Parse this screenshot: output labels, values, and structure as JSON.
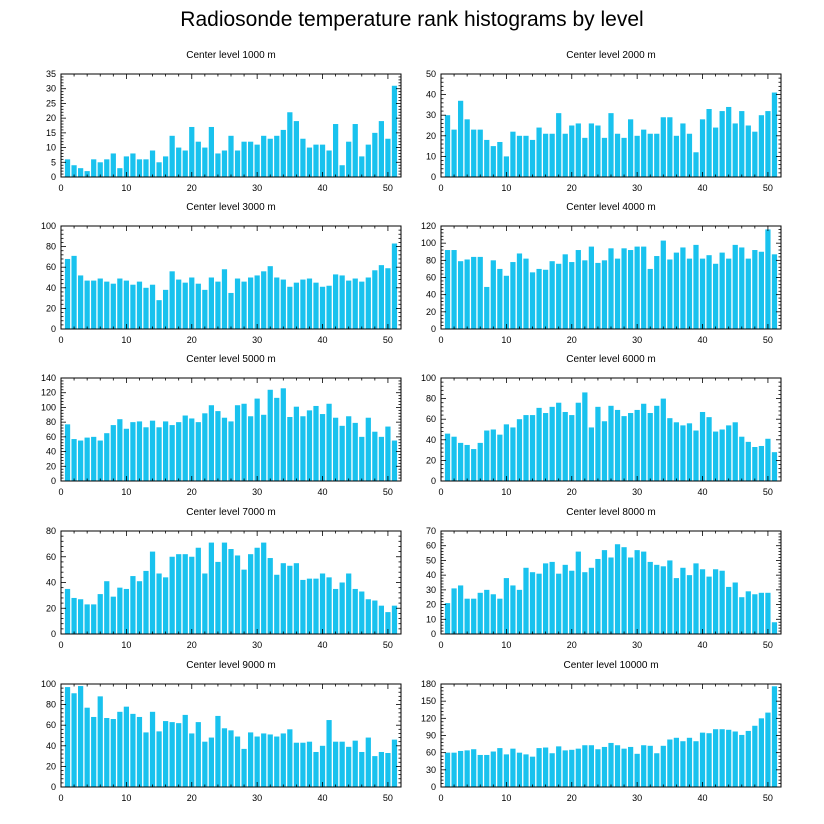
{
  "title": "Radiosonde temperature rank histograms by level",
  "colors": {
    "bar": "#19c2ee",
    "axis": "#000000"
  },
  "chart_data": [
    {
      "type": "bar",
      "title": "Center level 1000 m",
      "xlim": [
        0,
        52
      ],
      "ylim": [
        0,
        35
      ],
      "xticks": [
        0,
        10,
        20,
        30,
        40,
        50
      ],
      "yticks": [
        0,
        5,
        10,
        15,
        20,
        25,
        30,
        35
      ],
      "x": [
        1,
        2,
        3,
        4,
        5,
        6,
        7,
        8,
        9,
        10,
        11,
        12,
        13,
        14,
        15,
        16,
        17,
        18,
        19,
        20,
        21,
        22,
        23,
        24,
        25,
        26,
        27,
        28,
        29,
        30,
        31,
        32,
        33,
        34,
        35,
        36,
        37,
        38,
        39,
        40,
        41,
        42,
        43,
        44,
        45,
        46,
        47,
        48,
        49,
        50,
        51
      ],
      "values": [
        6,
        4,
        3,
        2,
        6,
        5,
        6,
        8,
        3,
        7,
        8,
        6,
        6,
        9,
        5,
        7,
        14,
        10,
        9,
        17,
        12,
        10,
        17,
        8,
        9,
        14,
        9,
        12,
        12,
        11,
        14,
        13,
        14,
        16,
        22,
        19,
        13,
        10,
        11,
        11,
        9,
        18,
        4,
        12,
        18,
        7,
        11,
        15,
        19,
        13,
        31
      ]
    },
    {
      "type": "bar",
      "title": "Center level 2000 m",
      "xlim": [
        0,
        52
      ],
      "ylim": [
        0,
        50
      ],
      "xticks": [
        0,
        10,
        20,
        30,
        40,
        50
      ],
      "yticks": [
        0,
        10,
        20,
        30,
        40,
        50
      ],
      "x": [
        1,
        2,
        3,
        4,
        5,
        6,
        7,
        8,
        9,
        10,
        11,
        12,
        13,
        14,
        15,
        16,
        17,
        18,
        19,
        20,
        21,
        22,
        23,
        24,
        25,
        26,
        27,
        28,
        29,
        30,
        31,
        32,
        33,
        34,
        35,
        36,
        37,
        38,
        39,
        40,
        41,
        42,
        43,
        44,
        45,
        46,
        47,
        48,
        49,
        50,
        51
      ],
      "values": [
        30,
        23,
        37,
        28,
        23,
        23,
        18,
        15,
        17,
        10,
        22,
        20,
        20,
        18,
        24,
        21,
        21,
        31,
        21,
        25,
        26,
        19,
        26,
        25,
        19,
        31,
        21,
        19,
        28,
        20,
        23,
        21,
        21,
        29,
        29,
        20,
        26,
        21,
        12,
        28,
        33,
        24,
        32,
        34,
        26,
        32,
        25,
        22,
        30,
        32,
        41
      ]
    },
    {
      "type": "bar",
      "title": "Center level 3000 m",
      "xlim": [
        0,
        52
      ],
      "ylim": [
        0,
        100
      ],
      "xticks": [
        0,
        10,
        20,
        30,
        40,
        50
      ],
      "yticks": [
        0,
        20,
        40,
        60,
        80,
        100
      ],
      "x": [
        1,
        2,
        3,
        4,
        5,
        6,
        7,
        8,
        9,
        10,
        11,
        12,
        13,
        14,
        15,
        16,
        17,
        18,
        19,
        20,
        21,
        22,
        23,
        24,
        25,
        26,
        27,
        28,
        29,
        30,
        31,
        32,
        33,
        34,
        35,
        36,
        37,
        38,
        39,
        40,
        41,
        42,
        43,
        44,
        45,
        46,
        47,
        48,
        49,
        50,
        51
      ],
      "values": [
        68,
        71,
        52,
        47,
        47,
        49,
        46,
        44,
        49,
        47,
        43,
        46,
        40,
        43,
        28,
        38,
        56,
        48,
        45,
        50,
        44,
        38,
        50,
        46,
        58,
        35,
        49,
        46,
        50,
        52,
        56,
        61,
        50,
        48,
        41,
        45,
        48,
        49,
        45,
        41,
        42,
        53,
        52,
        47,
        49,
        46,
        50,
        57,
        62,
        59,
        83
      ]
    },
    {
      "type": "bar",
      "title": "Center level 4000 m",
      "xlim": [
        0,
        52
      ],
      "ylim": [
        0,
        120
      ],
      "xticks": [
        0,
        10,
        20,
        30,
        40,
        50
      ],
      "yticks": [
        0,
        20,
        40,
        60,
        80,
        100,
        120
      ],
      "x": [
        1,
        2,
        3,
        4,
        5,
        6,
        7,
        8,
        9,
        10,
        11,
        12,
        13,
        14,
        15,
        16,
        17,
        18,
        19,
        20,
        21,
        22,
        23,
        24,
        25,
        26,
        27,
        28,
        29,
        30,
        31,
        32,
        33,
        34,
        35,
        36,
        37,
        38,
        39,
        40,
        41,
        42,
        43,
        44,
        45,
        46,
        47,
        48,
        49,
        50,
        51
      ],
      "values": [
        92,
        92,
        79,
        81,
        84,
        84,
        49,
        80,
        70,
        62,
        78,
        88,
        82,
        66,
        70,
        69,
        79,
        76,
        87,
        78,
        92,
        80,
        96,
        77,
        80,
        94,
        82,
        94,
        92,
        96,
        96,
        70,
        85,
        103,
        81,
        89,
        95,
        82,
        98,
        82,
        86,
        76,
        89,
        82,
        98,
        95,
        82,
        92,
        90,
        116,
        87
      ]
    },
    {
      "type": "bar",
      "title": "Center level 5000 m",
      "xlim": [
        0,
        52
      ],
      "ylim": [
        0,
        140
      ],
      "xticks": [
        0,
        10,
        20,
        30,
        40,
        50
      ],
      "yticks": [
        0,
        20,
        40,
        60,
        80,
        100,
        120,
        140
      ],
      "x": [
        1,
        2,
        3,
        4,
        5,
        6,
        7,
        8,
        9,
        10,
        11,
        12,
        13,
        14,
        15,
        16,
        17,
        18,
        19,
        20,
        21,
        22,
        23,
        24,
        25,
        26,
        27,
        28,
        29,
        30,
        31,
        32,
        33,
        34,
        35,
        36,
        37,
        38,
        39,
        40,
        41,
        42,
        43,
        44,
        45,
        46,
        47,
        48,
        49,
        50,
        51
      ],
      "values": [
        77,
        57,
        55,
        59,
        60,
        55,
        65,
        76,
        84,
        71,
        80,
        81,
        73,
        82,
        73,
        81,
        76,
        80,
        89,
        85,
        80,
        92,
        103,
        95,
        86,
        81,
        103,
        105,
        88,
        112,
        90,
        124,
        113,
        126,
        87,
        101,
        88,
        96,
        102,
        91,
        105,
        86,
        75,
        88,
        79,
        60,
        86,
        67,
        60,
        74,
        55
      ]
    },
    {
      "type": "bar",
      "title": "Center level 6000 m",
      "xlim": [
        0,
        52
      ],
      "ylim": [
        0,
        100
      ],
      "xticks": [
        0,
        10,
        20,
        30,
        40,
        50
      ],
      "yticks": [
        0,
        20,
        40,
        60,
        80,
        100
      ],
      "x": [
        1,
        2,
        3,
        4,
        5,
        6,
        7,
        8,
        9,
        10,
        11,
        12,
        13,
        14,
        15,
        16,
        17,
        18,
        19,
        20,
        21,
        22,
        23,
        24,
        25,
        26,
        27,
        28,
        29,
        30,
        31,
        32,
        33,
        34,
        35,
        36,
        37,
        38,
        39,
        40,
        41,
        42,
        43,
        44,
        45,
        46,
        47,
        48,
        49,
        50,
        51
      ],
      "values": [
        46,
        43,
        37,
        35,
        31,
        37,
        49,
        50,
        45,
        55,
        52,
        60,
        64,
        64,
        71,
        66,
        72,
        76,
        67,
        64,
        76,
        86,
        52,
        72,
        58,
        73,
        69,
        63,
        66,
        69,
        75,
        66,
        73,
        80,
        61,
        57,
        54,
        56,
        49,
        67,
        62,
        48,
        50,
        54,
        57,
        43,
        38,
        33,
        34,
        41,
        28
      ]
    },
    {
      "type": "bar",
      "title": "Center level 7000 m",
      "xlim": [
        0,
        52
      ],
      "ylim": [
        0,
        80
      ],
      "xticks": [
        0,
        10,
        20,
        30,
        40,
        50
      ],
      "yticks": [
        0,
        20,
        40,
        60,
        80
      ],
      "x": [
        1,
        2,
        3,
        4,
        5,
        6,
        7,
        8,
        9,
        10,
        11,
        12,
        13,
        14,
        15,
        16,
        17,
        18,
        19,
        20,
        21,
        22,
        23,
        24,
        25,
        26,
        27,
        28,
        29,
        30,
        31,
        32,
        33,
        34,
        35,
        36,
        37,
        38,
        39,
        40,
        41,
        42,
        43,
        44,
        45,
        46,
        47,
        48,
        49,
        50,
        51
      ],
      "values": [
        35,
        28,
        27,
        23,
        23,
        31,
        41,
        29,
        36,
        35,
        45,
        41,
        49,
        64,
        47,
        44,
        60,
        62,
        62,
        60,
        67,
        47,
        71,
        56,
        71,
        66,
        61,
        50,
        62,
        67,
        71,
        59,
        46,
        55,
        53,
        55,
        42,
        43,
        43,
        47,
        44,
        35,
        40,
        47,
        35,
        33,
        27,
        26,
        22,
        17,
        22
      ]
    },
    {
      "type": "bar",
      "title": "Center level 8000 m",
      "xlim": [
        0,
        52
      ],
      "ylim": [
        0,
        70
      ],
      "xticks": [
        0,
        10,
        20,
        30,
        40,
        50
      ],
      "yticks": [
        0,
        10,
        20,
        30,
        40,
        50,
        60,
        70
      ],
      "x": [
        1,
        2,
        3,
        4,
        5,
        6,
        7,
        8,
        9,
        10,
        11,
        12,
        13,
        14,
        15,
        16,
        17,
        18,
        19,
        20,
        21,
        22,
        23,
        24,
        25,
        26,
        27,
        28,
        29,
        30,
        31,
        32,
        33,
        34,
        35,
        36,
        37,
        38,
        39,
        40,
        41,
        42,
        43,
        44,
        45,
        46,
        47,
        48,
        49,
        50,
        51
      ],
      "values": [
        21,
        31,
        33,
        24,
        24,
        28,
        30,
        27,
        24,
        38,
        33,
        30,
        45,
        42,
        41,
        48,
        49,
        41,
        47,
        43,
        56,
        42,
        45,
        51,
        57,
        52,
        61,
        59,
        52,
        57,
        56,
        49,
        47,
        46,
        50,
        38,
        45,
        40,
        48,
        44,
        39,
        44,
        43,
        32,
        35,
        25,
        29,
        27,
        28,
        28,
        8
      ]
    },
    {
      "type": "bar",
      "title": "Center level 9000 m",
      "xlim": [
        0,
        52
      ],
      "ylim": [
        0,
        100
      ],
      "xticks": [
        0,
        10,
        20,
        30,
        40,
        50
      ],
      "yticks": [
        0,
        20,
        40,
        60,
        80,
        100
      ],
      "x": [
        1,
        2,
        3,
        4,
        5,
        6,
        7,
        8,
        9,
        10,
        11,
        12,
        13,
        14,
        15,
        16,
        17,
        18,
        19,
        20,
        21,
        22,
        23,
        24,
        25,
        26,
        27,
        28,
        29,
        30,
        31,
        32,
        33,
        34,
        35,
        36,
        37,
        38,
        39,
        40,
        41,
        42,
        43,
        44,
        45,
        46,
        47,
        48,
        49,
        50,
        51
      ],
      "values": [
        97,
        91,
        98,
        77,
        68,
        88,
        67,
        66,
        73,
        78,
        71,
        68,
        53,
        73,
        54,
        64,
        63,
        62,
        70,
        52,
        63,
        44,
        48,
        69,
        57,
        55,
        49,
        37,
        53,
        49,
        52,
        51,
        49,
        52,
        56,
        43,
        43,
        44,
        34,
        40,
        65,
        44,
        44,
        39,
        45,
        34,
        48,
        30,
        34,
        33,
        46
      ]
    },
    {
      "type": "bar",
      "title": "Center level 10000 m",
      "xlim": [
        0,
        52
      ],
      "ylim": [
        0,
        180
      ],
      "xticks": [
        0,
        10,
        20,
        30,
        40,
        50
      ],
      "yticks": [
        0,
        30,
        60,
        90,
        120,
        150,
        180
      ],
      "x": [
        1,
        2,
        3,
        4,
        5,
        6,
        7,
        8,
        9,
        10,
        11,
        12,
        13,
        14,
        15,
        16,
        17,
        18,
        19,
        20,
        21,
        22,
        23,
        24,
        25,
        26,
        27,
        28,
        29,
        30,
        31,
        32,
        33,
        34,
        35,
        36,
        37,
        38,
        39,
        40,
        41,
        42,
        43,
        44,
        45,
        46,
        47,
        48,
        49,
        50,
        51
      ],
      "values": [
        60,
        60,
        63,
        64,
        66,
        56,
        56,
        62,
        68,
        57,
        67,
        60,
        57,
        53,
        68,
        69,
        59,
        71,
        64,
        65,
        67,
        73,
        73,
        66,
        70,
        77,
        73,
        67,
        70,
        58,
        73,
        72,
        59,
        72,
        83,
        86,
        80,
        86,
        80,
        95,
        94,
        101,
        101,
        100,
        97,
        91,
        98,
        107,
        120,
        130,
        176
      ]
    }
  ]
}
